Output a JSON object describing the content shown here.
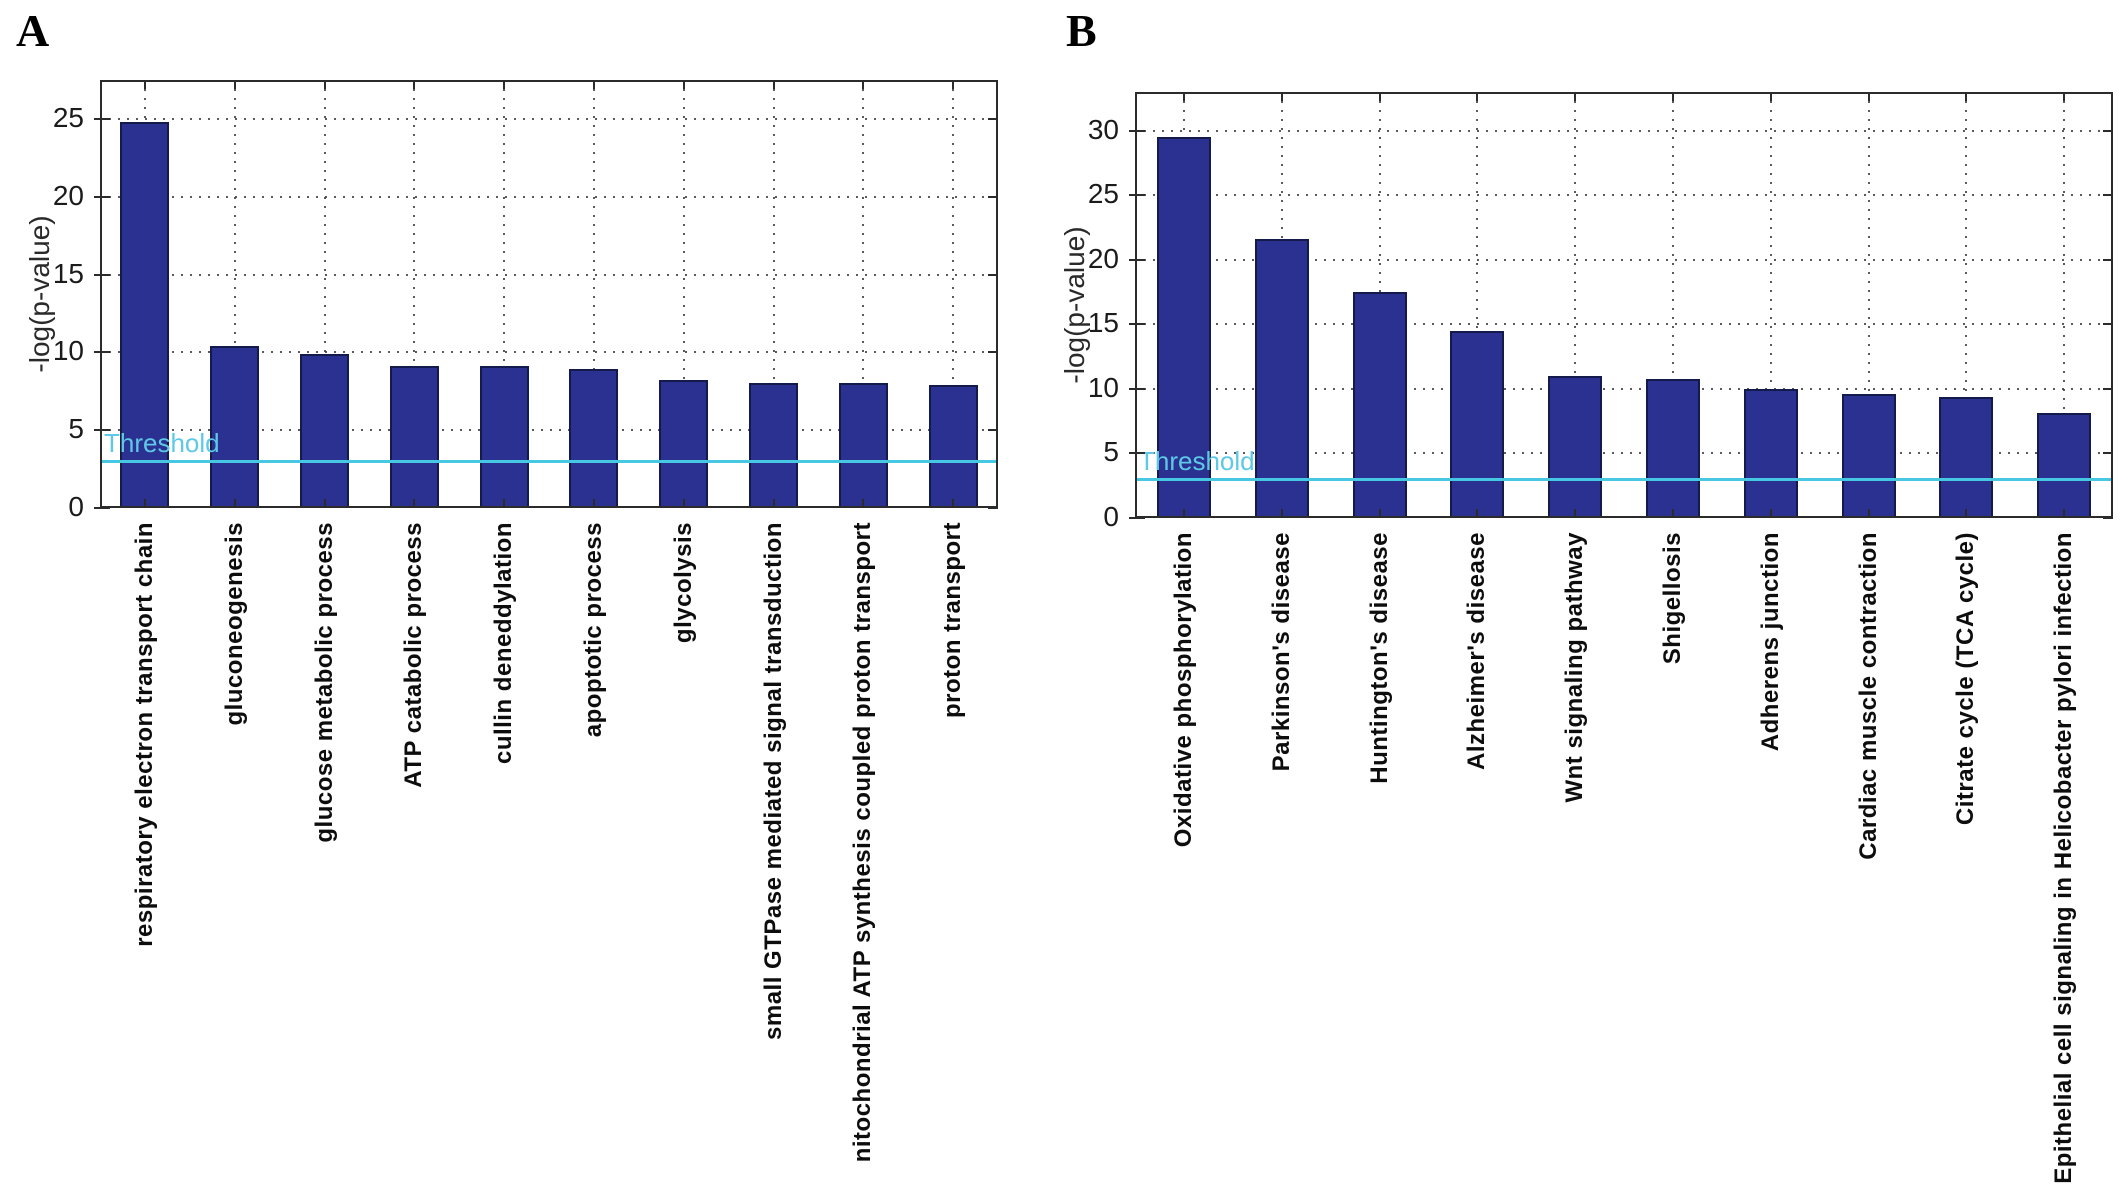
{
  "figure": {
    "background": "#ffffff",
    "bar_fill": "#2b3191",
    "bar_edge": "#141a4a",
    "axis_color": "#2b2b2b",
    "grid_color": "#3d3d3d",
    "tick_label_color": "#1b1b1b",
    "threshold_line_color": "#46c8e2",
    "threshold_text_color": "#5ec9e6"
  },
  "chart_data": [
    {
      "type": "bar",
      "panel_label": "A",
      "title": "",
      "xlabel": "",
      "ylabel": "-log(p-value)",
      "ylim": [
        0,
        27.5
      ],
      "yticks": [
        0,
        5,
        10,
        15,
        20,
        25
      ],
      "grid": "dotted",
      "legend_position": "none",
      "threshold": {
        "label": "Threshold",
        "value": 3
      },
      "categories": [
        "respiratory electron transport chain",
        "gluconeogenesis",
        "glucose metabolic process",
        "ATP catabolic process",
        "cullin deneddylation",
        "apoptotic process",
        "glycolysis",
        "small GTPase mediated signal transduction",
        "nitochondrial ATP synthesis coupled proton transport",
        "proton transport"
      ],
      "values": [
        24.8,
        10.4,
        9.9,
        9.1,
        9.1,
        8.9,
        8.2,
        8.0,
        8.0,
        7.9
      ]
    },
    {
      "type": "bar",
      "panel_label": "B",
      "title": "",
      "xlabel": "",
      "ylabel": "-log(p-value)",
      "ylim": [
        0,
        33
      ],
      "yticks": [
        0,
        5,
        10,
        15,
        20,
        25,
        30
      ],
      "grid": "dotted",
      "legend_position": "none",
      "threshold": {
        "label": "Threshold",
        "value": 3
      },
      "categories": [
        "Oxidative phosphorylation",
        "Parkinson's disease",
        "Huntington's disease",
        "Alzheimer's disease",
        "Wnt signaling pathway",
        "Shigellosis",
        "Adherens junction",
        "Cardiac muscle contraction",
        "Citrate cycle (TCA cycle)",
        "Epithelial cell signaling in Helicobacter pylori infection"
      ],
      "values": [
        29.5,
        21.6,
        17.5,
        14.5,
        11.0,
        10.8,
        10.0,
        9.6,
        9.4,
        8.1
      ]
    }
  ]
}
